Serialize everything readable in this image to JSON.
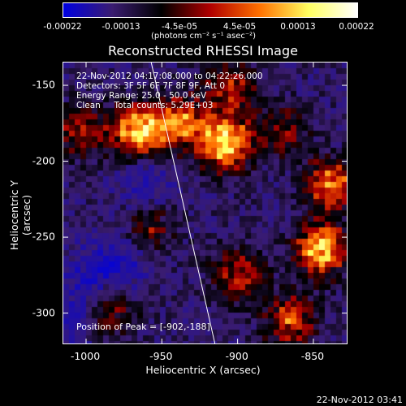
{
  "colorbar": {
    "ticks": [
      "-0.00022",
      "-0.00013",
      "-4.5e-05",
      "4.5e-05",
      "0.00013",
      "0.00022"
    ],
    "unit": "(photons cm⁻² s⁻¹ asec⁻²)",
    "colors": [
      "#0000e0",
      "#3a1c70",
      "#000000",
      "#b00000",
      "#ff7000",
      "#ffff60",
      "#ffffff"
    ]
  },
  "chart_data": {
    "type": "heatmap",
    "title": "Reconstructed RHESSI Image",
    "xlabel": "Heliocentric X (arcsec)",
    "ylabel": "Heliocentric Y (arcsec)",
    "xlim": [
      -1015,
      -828
    ],
    "ylim": [
      -320,
      -135
    ],
    "x_ticks": [
      "-1000",
      "-950",
      "-900",
      "-850"
    ],
    "x_tick_values": [
      -1000,
      -950,
      -900,
      -850
    ],
    "y_ticks": [
      "-150",
      "-200",
      "-250",
      "-300"
    ],
    "y_tick_values": [
      -150,
      -200,
      -250,
      -300
    ],
    "limb_line": {
      "x": [
        -957,
        -915
      ],
      "y": [
        -135,
        -320
      ]
    },
    "bright_sources": [
      {
        "x": -965,
        "y": -180,
        "level": 0.95
      },
      {
        "x": -938,
        "y": -175,
        "level": 0.7
      },
      {
        "x": -908,
        "y": -188,
        "level": 1.0
      },
      {
        "x": -905,
        "y": -152,
        "level": 0.5
      },
      {
        "x": -845,
        "y": -258,
        "level": 0.9
      },
      {
        "x": -838,
        "y": -215,
        "level": 0.7
      },
      {
        "x": -900,
        "y": -275,
        "level": 0.55
      },
      {
        "x": -865,
        "y": -305,
        "level": 0.6
      },
      {
        "x": -985,
        "y": -300,
        "level": 0.45
      },
      {
        "x": -1002,
        "y": -180,
        "level": 0.45
      },
      {
        "x": -958,
        "y": -245,
        "level": 0.4
      },
      {
        "x": -870,
        "y": -180,
        "level": 0.4
      }
    ],
    "dark_regions": [
      {
        "x": -995,
        "y": -275
      },
      {
        "x": -975,
        "y": -265
      },
      {
        "x": -1005,
        "y": -305
      },
      {
        "x": -960,
        "y": -215
      }
    ]
  },
  "annotations": {
    "line1": "22-Nov-2012 04:17:08.000 to 04:22:26.000",
    "line2": "Detectors: 3F 5F 6F 7F 8F 9F, Att 0",
    "line3": "Energy Range: 25.0 - 50.0 keV",
    "line4": "Clean     Total counts: 5.29E+03",
    "peak": "Position of Peak = [-902,-188]"
  },
  "timestamp": "22-Nov-2012 03:41"
}
